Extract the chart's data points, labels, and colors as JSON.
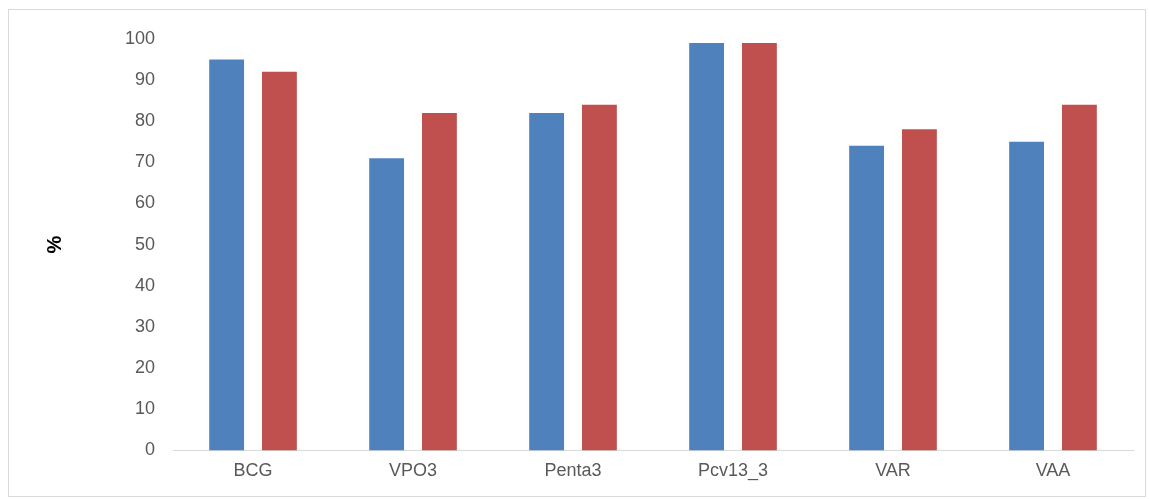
{
  "chart_data": {
    "type": "bar",
    "ylabel": "%",
    "categories": [
      "BCG",
      "VPO3",
      "Penta3",
      "Pcv13_3",
      "VAR",
      "VAA"
    ],
    "series": [
      {
        "color": "#4f81bd",
        "values": [
          95,
          71,
          82,
          99,
          74,
          75
        ]
      },
      {
        "color": "#c0504d",
        "values": [
          92,
          82,
          84,
          99,
          78,
          84
        ]
      }
    ],
    "ylim": [
      0,
      100
    ],
    "yticks": [
      0,
      10,
      20,
      30,
      40,
      50,
      60,
      70,
      80,
      90,
      100
    ],
    "grid": false,
    "legend": false
  }
}
